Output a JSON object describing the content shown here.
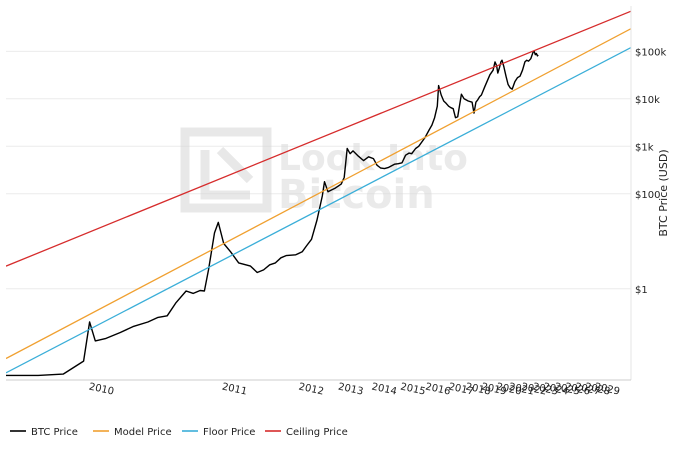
{
  "chart_data": {
    "type": "line",
    "title": "",
    "xlabel": "",
    "ylabel": "BTC Price (USD)",
    "y_scale": "log",
    "ylim": [
      0.012,
      900000
    ],
    "y_ticks": [
      {
        "value": 1,
        "label": "$1"
      },
      {
        "value": 100,
        "label": "$100"
      },
      {
        "value": 1000,
        "label": "$1k"
      },
      {
        "value": 10000,
        "label": "$10k"
      },
      {
        "value": 100000,
        "label": "$100k"
      }
    ],
    "x_ticks": [
      {
        "value": 21,
        "label": "2010"
      },
      {
        "value": 69,
        "label": "2011"
      },
      {
        "value": 137,
        "label": "2012"
      },
      {
        "value": 195,
        "label": "2013"
      },
      {
        "value": 263,
        "label": "2014"
      },
      {
        "value": 340,
        "label": "2015"
      },
      {
        "value": 425,
        "label": "2016"
      },
      {
        "value": 523,
        "label": "2017"
      },
      {
        "value": 609,
        "label": "2018"
      },
      {
        "value": 701,
        "label": "2019"
      },
      {
        "value": 802,
        "label": "2020"
      },
      {
        "value": 897,
        "label": "2021"
      },
      {
        "value": 1003,
        "label": "2022"
      },
      {
        "value": 1111,
        "label": "2023"
      },
      {
        "value": 1220,
        "label": "2024"
      },
      {
        "value": 1350,
        "label": "2025"
      },
      {
        "value": 1480,
        "label": "2026"
      },
      {
        "value": 1620,
        "label": "2027"
      },
      {
        "value": 1770,
        "label": "2028"
      },
      {
        "value": 1930,
        "label": "2029"
      }
    ],
    "x_scale": "log (days since genesis block)",
    "xlim": [
      9,
      2400
    ],
    "grid": true,
    "legend_position": "bottom",
    "watermark": "Look Into Bitcoin",
    "series": [
      {
        "name": "BTC Price",
        "color": "#000000",
        "points": [
          [
            9,
            0.015
          ],
          [
            12,
            0.015
          ],
          [
            15,
            0.016
          ],
          [
            18,
            0.03
          ],
          [
            19,
            0.2
          ],
          [
            20,
            0.08
          ],
          [
            22,
            0.09
          ],
          [
            25,
            0.12
          ],
          [
            28,
            0.16
          ],
          [
            32,
            0.2
          ],
          [
            35,
            0.25
          ],
          [
            38,
            0.27
          ],
          [
            41,
            0.5
          ],
          [
            45,
            0.9
          ],
          [
            48,
            0.8
          ],
          [
            51,
            0.92
          ],
          [
            53,
            0.9
          ],
          [
            55,
            2.5
          ],
          [
            58,
            15
          ],
          [
            60,
            25
          ],
          [
            63,
            9
          ],
          [
            67,
            6
          ],
          [
            72,
            3.5
          ],
          [
            80,
            3
          ],
          [
            85,
            2.2
          ],
          [
            90,
            2.5
          ],
          [
            95,
            3.2
          ],
          [
            100,
            3.5
          ],
          [
            105,
            4.5
          ],
          [
            110,
            5
          ],
          [
            120,
            5.2
          ],
          [
            127,
            6
          ],
          [
            132,
            8
          ],
          [
            138,
            11
          ],
          [
            145,
            28
          ],
          [
            152,
            90
          ],
          [
            155,
            180
          ],
          [
            160,
            110
          ],
          [
            165,
            120
          ],
          [
            170,
            130
          ],
          [
            180,
            160
          ],
          [
            185,
            220
          ],
          [
            190,
            900
          ],
          [
            195,
            700
          ],
          [
            200,
            800
          ],
          [
            210,
            620
          ],
          [
            220,
            500
          ],
          [
            230,
            600
          ],
          [
            240,
            550
          ],
          [
            248,
            400
          ],
          [
            256,
            350
          ],
          [
            265,
            340
          ],
          [
            275,
            360
          ],
          [
            290,
            420
          ],
          [
            300,
            430
          ],
          [
            310,
            450
          ],
          [
            320,
            650
          ],
          [
            330,
            720
          ],
          [
            338,
            700
          ],
          [
            350,
            900
          ],
          [
            360,
            1000
          ],
          [
            380,
            1500
          ],
          [
            395,
            2200
          ],
          [
            405,
            2800
          ],
          [
            415,
            4000
          ],
          [
            425,
            7000
          ],
          [
            430,
            19000
          ],
          [
            440,
            12000
          ],
          [
            450,
            9000
          ],
          [
            460,
            8000
          ],
          [
            470,
            7000
          ],
          [
            480,
            6500
          ],
          [
            490,
            6200
          ],
          [
            500,
            4000
          ],
          [
            510,
            4200
          ],
          [
            520,
            8000
          ],
          [
            527,
            12500
          ],
          [
            540,
            10000
          ],
          [
            560,
            9000
          ],
          [
            580,
            8500
          ],
          [
            590,
            5000
          ],
          [
            600,
            8500
          ],
          [
            610,
            9500
          ],
          [
            620,
            11000
          ],
          [
            630,
            12000
          ],
          [
            650,
            18000
          ],
          [
            680,
            32000
          ],
          [
            700,
            40000
          ],
          [
            712,
            60000
          ],
          [
            722,
            50000
          ],
          [
            730,
            35000
          ],
          [
            740,
            45000
          ],
          [
            750,
            60000
          ],
          [
            758,
            65000
          ],
          [
            770,
            48000
          ],
          [
            785,
            30000
          ],
          [
            800,
            20000
          ],
          [
            815,
            17000
          ],
          [
            830,
            16000
          ],
          [
            850,
            23000
          ],
          [
            870,
            28000
          ],
          [
            890,
            30000
          ],
          [
            910,
            40000
          ],
          [
            930,
            60000
          ],
          [
            945,
            65000
          ],
          [
            960,
            62000
          ],
          [
            980,
            70000
          ],
          [
            1000,
            95000
          ],
          [
            1010,
            100000
          ],
          [
            1020,
            85000
          ],
          [
            1030,
            90000
          ],
          [
            1040,
            80000
          ],
          [
            1047,
            84000
          ]
        ]
      },
      {
        "name": "Model Price",
        "color": "#f0a030",
        "endpoints": [
          [
            9,
            0.034
          ],
          [
            2400,
            300000
          ]
        ]
      },
      {
        "name": "Floor Price",
        "color": "#3aaed8",
        "endpoints": [
          [
            9,
            0.017
          ],
          [
            2400,
            120000
          ]
        ]
      },
      {
        "name": "Ceiling Price",
        "color": "#d62c2c",
        "endpoints": [
          [
            9,
            3.0
          ],
          [
            2400,
            700000
          ]
        ]
      }
    ]
  },
  "legend": [
    {
      "label": "BTC Price",
      "color": "#000000"
    },
    {
      "label": "Model Price",
      "color": "#f0a030"
    },
    {
      "label": "Floor Price",
      "color": "#3aaed8"
    },
    {
      "label": "Ceiling Price",
      "color": "#d62c2c"
    }
  ]
}
